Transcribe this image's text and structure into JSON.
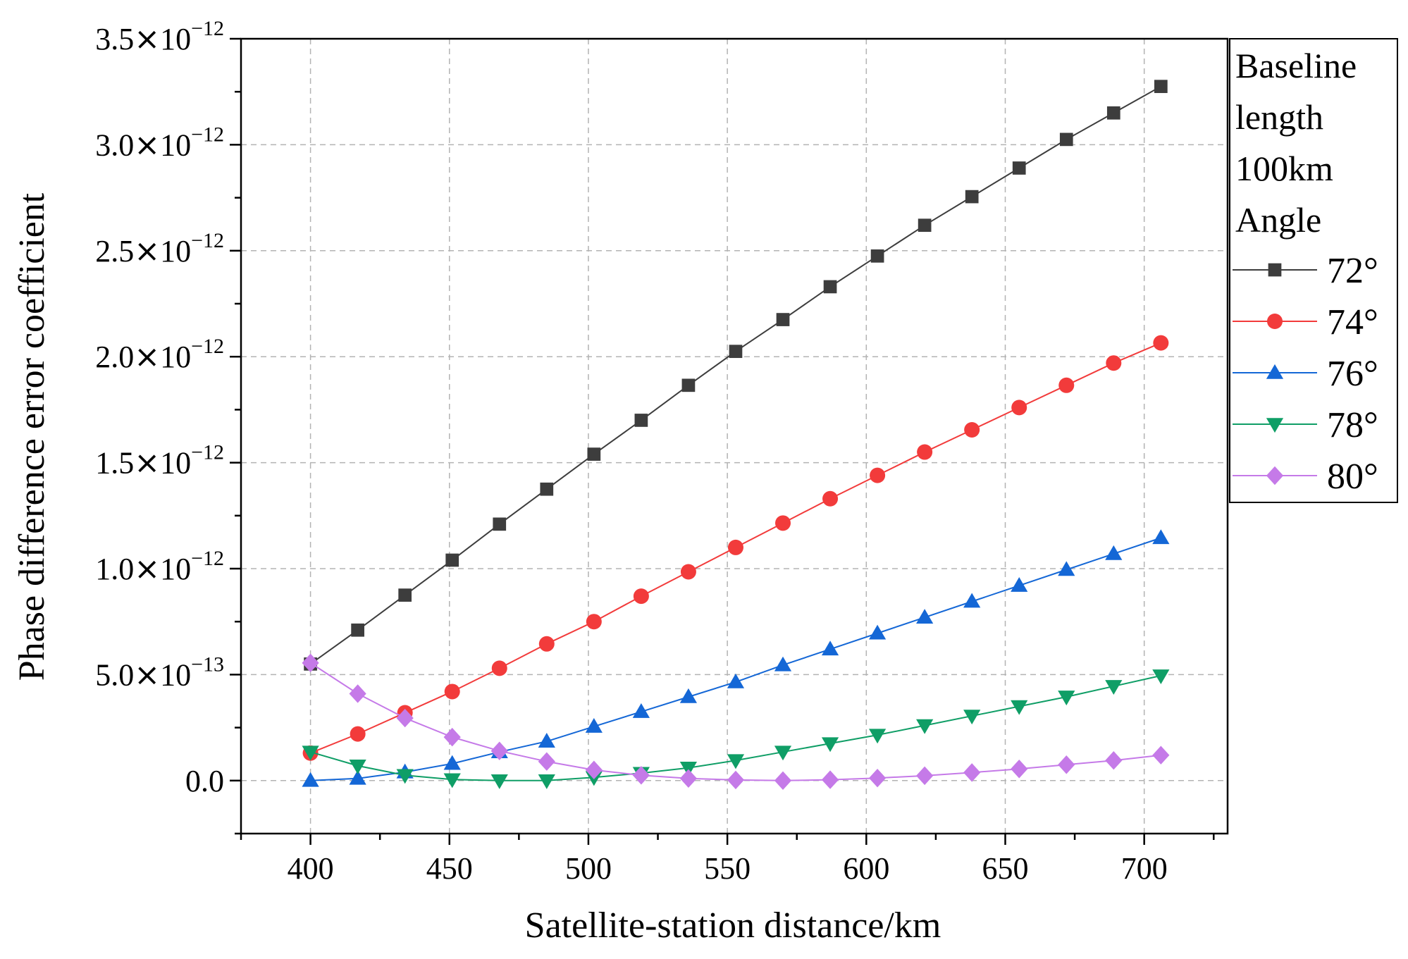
{
  "chart_data": {
    "type": "line",
    "title": "",
    "xlabel": "Satellite-station distance/km",
    "ylabel": "Phase difference error coefficient",
    "xlim": [
      375,
      730
    ],
    "ylim": [
      -2.5e-13,
      3.5e-12
    ],
    "x_ticks": [
      {
        "value": 400,
        "label": "400"
      },
      {
        "value": 450,
        "label": "450"
      },
      {
        "value": 500,
        "label": "500"
      },
      {
        "value": 550,
        "label": "550"
      },
      {
        "value": 600,
        "label": "600"
      },
      {
        "value": 650,
        "label": "650"
      },
      {
        "value": 700,
        "label": "700"
      }
    ],
    "y_ticks": [
      {
        "value": 0,
        "mantissa": "0.0",
        "times": "",
        "base": "",
        "exponent": ""
      },
      {
        "value": 5e-13,
        "mantissa": "5.0",
        "times": "×",
        "base": "10",
        "exponent": "−13"
      },
      {
        "value": 1e-12,
        "mantissa": "1.0",
        "times": "×",
        "base": "10",
        "exponent": "−12"
      },
      {
        "value": 1.5e-12,
        "mantissa": "1.5",
        "times": "×",
        "base": "10",
        "exponent": "−12"
      },
      {
        "value": 2e-12,
        "mantissa": "2.0",
        "times": "×",
        "base": "10",
        "exponent": "−12"
      },
      {
        "value": 2.5e-12,
        "mantissa": "2.5",
        "times": "×",
        "base": "10",
        "exponent": "−12"
      },
      {
        "value": 3e-12,
        "mantissa": "3.0",
        "times": "×",
        "base": "10",
        "exponent": "−12"
      },
      {
        "value": 3.5e-12,
        "mantissa": "3.5",
        "times": "×",
        "base": "10",
        "exponent": "−12"
      }
    ],
    "grid": true,
    "legend": {
      "placement": "outside-right-top",
      "title_lines": [
        "Baseline",
        "length",
        "100km",
        "Angle"
      ]
    },
    "x": [
      400,
      417,
      434,
      451,
      468,
      485,
      502,
      519,
      536,
      553,
      570,
      587,
      604,
      621,
      638,
      655,
      672,
      689,
      706
    ],
    "series": [
      {
        "name": "72°",
        "color": "#3d3d3d",
        "marker": "square",
        "values": [
          5.5e-13,
          7.1e-13,
          8.75e-13,
          1.04e-12,
          1.21e-12,
          1.375e-12,
          1.54e-12,
          1.7e-12,
          1.865e-12,
          2.025e-12,
          2.175e-12,
          2.33e-12,
          2.475e-12,
          2.62e-12,
          2.755e-12,
          2.89e-12,
          3.025e-12,
          3.15e-12,
          3.275e-12
        ]
      },
      {
        "name": "74°",
        "color": "#f23b3b",
        "marker": "circle",
        "values": [
          1.3e-13,
          2.2e-13,
          3.2e-13,
          4.2e-13,
          5.3e-13,
          6.45e-13,
          7.5e-13,
          8.7e-13,
          9.85e-13,
          1.1e-12,
          1.215e-12,
          1.33e-12,
          1.44e-12,
          1.55e-12,
          1.655e-12,
          1.76e-12,
          1.865e-12,
          1.97e-12,
          2.065e-12
        ]
      },
      {
        "name": "76°",
        "color": "#1467d6",
        "marker": "triangle-up",
        "values": [
          0,
          1e-14,
          4e-14,
          8e-14,
          1.35e-13,
          1.85e-13,
          2.55e-13,
          3.25e-13,
          3.95e-13,
          4.65e-13,
          5.45e-13,
          6.2e-13,
          6.95e-13,
          7.7e-13,
          8.45e-13,
          9.2e-13,
          9.95e-13,
          1.07e-12,
          1.145e-12
        ]
      },
      {
        "name": "78°",
        "color": "#0f9e66",
        "marker": "triangle-down",
        "values": [
          1.35e-13,
          7e-14,
          2.5e-14,
          5e-15,
          0,
          0,
          1.5e-14,
          3.5e-14,
          6e-14,
          9.5e-14,
          1.35e-13,
          1.75e-13,
          2.15e-13,
          2.6e-13,
          3.05e-13,
          3.5e-13,
          3.95e-13,
          4.45e-13,
          4.95e-13
        ]
      },
      {
        "name": "80°",
        "color": "#c57ae8",
        "marker": "diamond",
        "values": [
          5.55e-13,
          4.1e-13,
          2.95e-13,
          2.05e-13,
          1.4e-13,
          9e-14,
          5e-14,
          2.5e-14,
          1e-14,
          3e-15,
          0,
          4e-15,
          1.2e-14,
          2.3e-14,
          3.8e-14,
          5.5e-14,
          7.5e-14,
          9.5e-14,
          1.2e-13
        ]
      }
    ]
  }
}
